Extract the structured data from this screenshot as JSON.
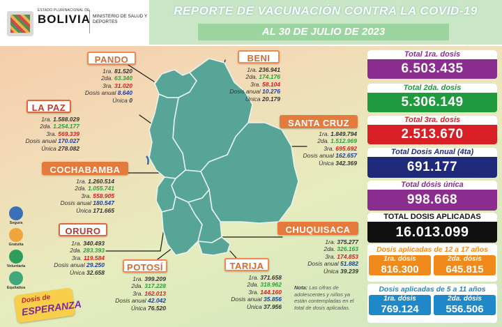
{
  "header": {
    "logo_small": "ESTADO PLURINACIONAL DE",
    "logo_big": "BOLIVIA",
    "ministry": "MINISTERIO DE SALUD Y DEPORTES",
    "title": "REPORTE DE VACUNACIÓN CONTRA LA COVID-19",
    "date": "AL 30 DE JULIO  DE 2023"
  },
  "keys": {
    "d1": "1ra.",
    "d2": "2da.",
    "d3": "3ra.",
    "anual": "Dosis anual",
    "unica": "Única"
  },
  "regions": {
    "pando": {
      "name": "PANDO",
      "d1": "81.520",
      "d2": "63.340",
      "d3": "31.020",
      "anual": "8.640",
      "unica": "0"
    },
    "beni": {
      "name": "BENI",
      "d1": "236.941",
      "d2": "174.176",
      "d3": "58.104",
      "anual": "10.276",
      "unica": "20.179"
    },
    "lapaz": {
      "name": "LA PAZ",
      "d1": "1.588.029",
      "d2": "1.254.177",
      "d3": "569.339",
      "anual": "170.027",
      "unica": "278.082"
    },
    "santacruz": {
      "name": "SANTA CRUZ",
      "d1": "1.849.794",
      "d2": "1.512.969",
      "d3": "695.692",
      "anual": "162.657",
      "unica": "342.369"
    },
    "cochabamba": {
      "name": "COCHABAMBA",
      "d1": "1.260.514",
      "d2": "1.055.741",
      "d3": "558.905",
      "anual": "180.547",
      "unica": "171.665"
    },
    "oruro": {
      "name": "ORURO",
      "d1": "340.493",
      "d2": "283.393",
      "d3": "119.584",
      "anual": "29.250",
      "unica": "32.658"
    },
    "chuquisaca": {
      "name": "CHUQUISACA",
      "d1": "375.277",
      "d2": "326.163",
      "d3": "174.853",
      "anual": "51.882",
      "unica": "39.239"
    },
    "potosi": {
      "name": "POTOSÍ",
      "d1": "399.209",
      "d2": "317.228",
      "d3": "162.013",
      "anual": "42.042",
      "unica": "76.520"
    },
    "tarija": {
      "name": "TARIJA",
      "d1": "371.658",
      "d2": "318.962",
      "d3": "144.160",
      "anual": "35.856",
      "unica": "37.956"
    }
  },
  "totals": {
    "t1": {
      "label": "Total 1ra. dosis",
      "value": "6.503.435",
      "color": "#8b2c8f"
    },
    "t2": {
      "label": "Total 2da. dosis",
      "value": "5.306.149",
      "color": "#1f9a3e"
    },
    "t3": {
      "label": "Total 3ra. dosis",
      "value": "2.513.670",
      "color": "#d81f26"
    },
    "t4": {
      "label": "Total Dosis Anual (4ta)",
      "value": "691.177",
      "color": "#1f2a7a"
    },
    "t5": {
      "label": "Total dósis única",
      "value": "998.668",
      "color": "#8b2c8f"
    },
    "t6": {
      "label": "TOTAL DOSIS APLICADAS",
      "value": "16.013.099",
      "color": "#111111"
    }
  },
  "age_12_17": {
    "title": "Dosis aplicadas de 12 a 17 años",
    "l1": "1ra. dósis",
    "v1": "816.300",
    "l2": "2da. dósis",
    "v2": "645.815",
    "color": "#f08a1c"
  },
  "age_5_11": {
    "title": "Dosis aplicadas de 5 a 11 años",
    "l1": "1ra. dósis",
    "v1": "769.124",
    "l2": "2da. dósis",
    "v2": "556.506",
    "color": "#1e88c8"
  },
  "icons": {
    "segura": "Segura",
    "gratuita": "Gratuita",
    "voluntaria": "Voluntaria",
    "equitativa": "Equitativa"
  },
  "note": {
    "bold": "Nota:",
    "text": " Las cifras de adolescentes y niños ya están contempladas en el total de dosis aplicadas."
  },
  "badge": {
    "line1": "Dosis de",
    "line2": "ESPERANZA"
  }
}
